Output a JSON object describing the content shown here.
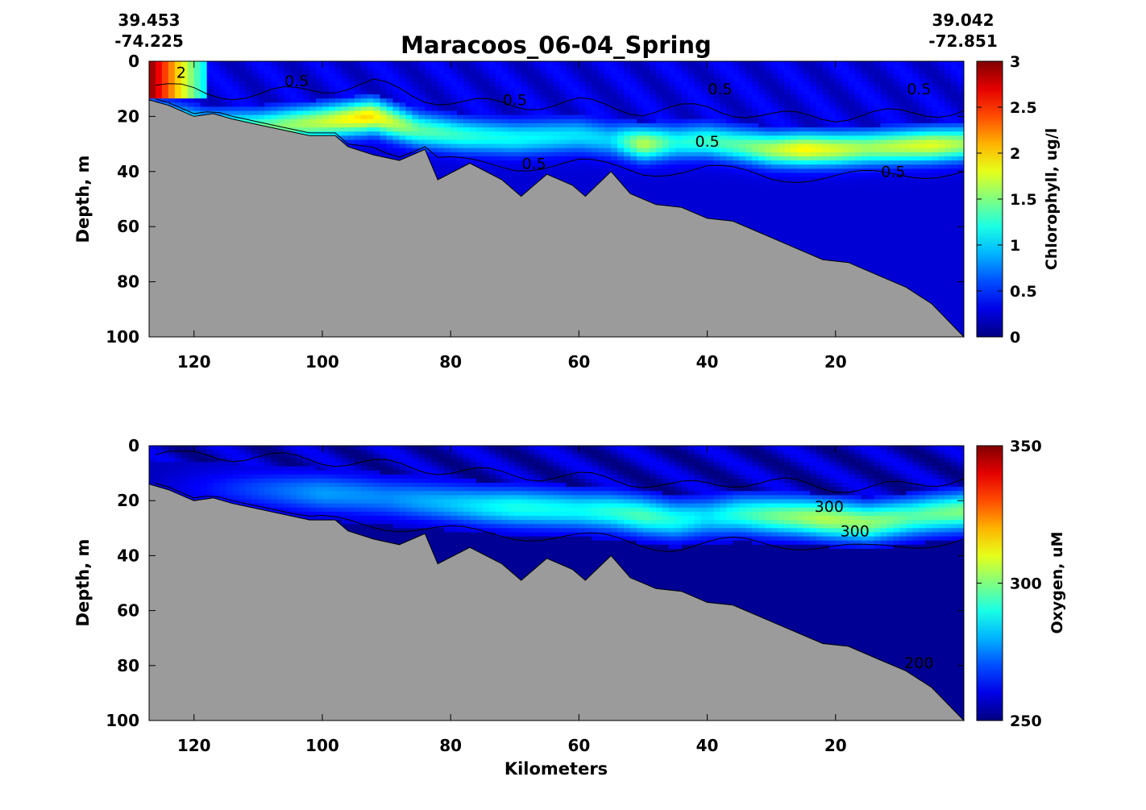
{
  "figure": {
    "title": "Maracoos_06-04_Spring",
    "start_lat": "39.453",
    "start_lon": "-74.225",
    "end_lat": "39.042",
    "end_lon": "-72.851"
  },
  "colors": {
    "seafloor": "#9b9b9b",
    "jet_low": "#00008f",
    "jet_high": "#800000"
  },
  "chart_data": [
    {
      "type": "heatmap",
      "title": "",
      "xlabel": "",
      "ylabel": "Depth, m",
      "colorbar_label": "Chlorophyll, ug/l",
      "xlim": [
        127,
        0
      ],
      "ylim": [
        100,
        0
      ],
      "clim": [
        0,
        3
      ],
      "x_ticks": [
        120,
        100,
        80,
        60,
        40,
        20
      ],
      "x_tick_labels": [
        "120",
        "100",
        "80",
        "60",
        "40",
        "20"
      ],
      "y_ticks": [
        0,
        20,
        40,
        60,
        80,
        100
      ],
      "y_tick_labels": [
        "0",
        "20",
        "40",
        "60",
        "80",
        "100"
      ],
      "cbar_ticks": [
        0,
        0.5,
        1,
        1.5,
        2,
        2.5,
        3
      ],
      "cbar_tick_labels": [
        "0",
        "0.5",
        "1",
        "1.5",
        "2",
        "2.5",
        "3"
      ],
      "bottom_depth": [
        [
          127,
          14
        ],
        [
          124,
          16
        ],
        [
          122,
          18
        ],
        [
          120,
          20
        ],
        [
          117,
          19
        ],
        [
          114,
          21
        ],
        [
          110,
          23
        ],
        [
          106,
          25
        ],
        [
          102,
          27
        ],
        [
          98,
          27
        ],
        [
          96,
          31
        ],
        [
          92,
          34
        ],
        [
          88,
          36
        ],
        [
          84,
          32
        ],
        [
          82,
          43
        ],
        [
          77,
          37
        ],
        [
          72,
          43
        ],
        [
          69,
          49
        ],
        [
          67,
          45
        ],
        [
          65,
          41
        ],
        [
          61,
          45
        ],
        [
          59,
          49
        ],
        [
          55,
          40
        ],
        [
          52,
          48
        ],
        [
          48,
          52
        ],
        [
          44,
          53
        ],
        [
          40,
          57
        ],
        [
          36,
          58
        ],
        [
          32,
          62
        ],
        [
          28,
          66
        ],
        [
          22,
          72
        ],
        [
          18,
          73
        ],
        [
          13,
          78
        ],
        [
          9,
          82
        ],
        [
          5,
          88
        ],
        [
          0,
          100
        ]
      ],
      "layer_max_depth": [
        [
          127,
          20
        ],
        [
          118,
          24
        ],
        [
          110,
          24
        ],
        [
          100,
          22
        ],
        [
          92,
          20
        ],
        [
          85,
          25
        ],
        [
          78,
          27
        ],
        [
          70,
          28
        ],
        [
          60,
          27
        ],
        [
          50,
          30
        ],
        [
          40,
          29
        ],
        [
          30,
          32
        ],
        [
          20,
          32
        ],
        [
          10,
          31
        ],
        [
          0,
          30
        ]
      ],
      "layer_peak_value": [
        [
          118,
          1.3
        ],
        [
          110,
          1.4
        ],
        [
          100,
          1.7
        ],
        [
          93,
          2.0
        ],
        [
          85,
          1.4
        ],
        [
          75,
          1.2
        ],
        [
          65,
          1.1
        ],
        [
          55,
          1.0
        ],
        [
          50,
          1.7
        ],
        [
          45,
          1.2
        ],
        [
          35,
          1.4
        ],
        [
          25,
          1.9
        ],
        [
          15,
          1.6
        ],
        [
          5,
          1.8
        ],
        [
          0,
          1.6
        ]
      ],
      "surface_patch": {
        "x_range": [
          127,
          118
        ],
        "depth_range": [
          0,
          14
        ],
        "peak_value": 3.0
      },
      "contour_labels": [
        {
          "text": "2",
          "x": 122,
          "depth": 6
        },
        {
          "text": "0.5",
          "x": 104,
          "depth": 9
        },
        {
          "text": "0.5",
          "x": 70,
          "depth": 16
        },
        {
          "text": "0.5",
          "x": 38,
          "depth": 12
        },
        {
          "text": "0.5",
          "x": 7,
          "depth": 12
        },
        {
          "text": "0.5",
          "x": 40,
          "depth": 31
        },
        {
          "text": "0.5",
          "x": 67,
          "depth": 39
        },
        {
          "text": "0.5",
          "x": 11,
          "depth": 42
        }
      ]
    },
    {
      "type": "heatmap",
      "title": "",
      "xlabel": "Kilometers",
      "ylabel": "Depth, m",
      "colorbar_label": "Oxygen, uM",
      "xlim": [
        127,
        0
      ],
      "ylim": [
        100,
        0
      ],
      "clim": [
        250,
        350
      ],
      "x_ticks": [
        120,
        100,
        80,
        60,
        40,
        20
      ],
      "x_tick_labels": [
        "120",
        "100",
        "80",
        "60",
        "40",
        "20"
      ],
      "y_ticks": [
        0,
        20,
        40,
        60,
        80,
        100
      ],
      "y_tick_labels": [
        "0",
        "20",
        "40",
        "60",
        "80",
        "100"
      ],
      "cbar_ticks": [
        250,
        300,
        350
      ],
      "cbar_tick_labels": [
        "250",
        "300",
        "350"
      ],
      "bottom_depth": [
        [
          127,
          14
        ],
        [
          124,
          16
        ],
        [
          122,
          18
        ],
        [
          120,
          20
        ],
        [
          117,
          19
        ],
        [
          114,
          21
        ],
        [
          110,
          23
        ],
        [
          106,
          25
        ],
        [
          102,
          27
        ],
        [
          98,
          27
        ],
        [
          96,
          31
        ],
        [
          92,
          34
        ],
        [
          88,
          36
        ],
        [
          84,
          32
        ],
        [
          82,
          43
        ],
        [
          77,
          37
        ],
        [
          72,
          43
        ],
        [
          69,
          49
        ],
        [
          67,
          45
        ],
        [
          65,
          41
        ],
        [
          61,
          45
        ],
        [
          59,
          49
        ],
        [
          55,
          40
        ],
        [
          52,
          48
        ],
        [
          48,
          52
        ],
        [
          44,
          53
        ],
        [
          40,
          57
        ],
        [
          36,
          58
        ],
        [
          32,
          62
        ],
        [
          28,
          66
        ],
        [
          22,
          72
        ],
        [
          18,
          73
        ],
        [
          13,
          78
        ],
        [
          9,
          82
        ],
        [
          5,
          88
        ],
        [
          0,
          100
        ]
      ],
      "layer_max_depth": [
        [
          127,
          15
        ],
        [
          110,
          16
        ],
        [
          95,
          18
        ],
        [
          85,
          20
        ],
        [
          75,
          22
        ],
        [
          65,
          23
        ],
        [
          55,
          24
        ],
        [
          45,
          27
        ],
        [
          35,
          25
        ],
        [
          25,
          26
        ],
        [
          20,
          27
        ],
        [
          15,
          28
        ],
        [
          5,
          25
        ],
        [
          0,
          24
        ]
      ],
      "layer_peak_value": [
        [
          127,
          256
        ],
        [
          110,
          270
        ],
        [
          100,
          278
        ],
        [
          90,
          276
        ],
        [
          80,
          282
        ],
        [
          70,
          290
        ],
        [
          60,
          288
        ],
        [
          50,
          295
        ],
        [
          40,
          285
        ],
        [
          30,
          298
        ],
        [
          22,
          305
        ],
        [
          15,
          302
        ],
        [
          8,
          296
        ],
        [
          0,
          300
        ]
      ],
      "contour_labels": [
        {
          "text": "300",
          "x": 21,
          "depth": 24
        },
        {
          "text": "300",
          "x": 17,
          "depth": 33
        },
        {
          "text": "200",
          "x": 7,
          "depth": 81
        }
      ]
    }
  ]
}
